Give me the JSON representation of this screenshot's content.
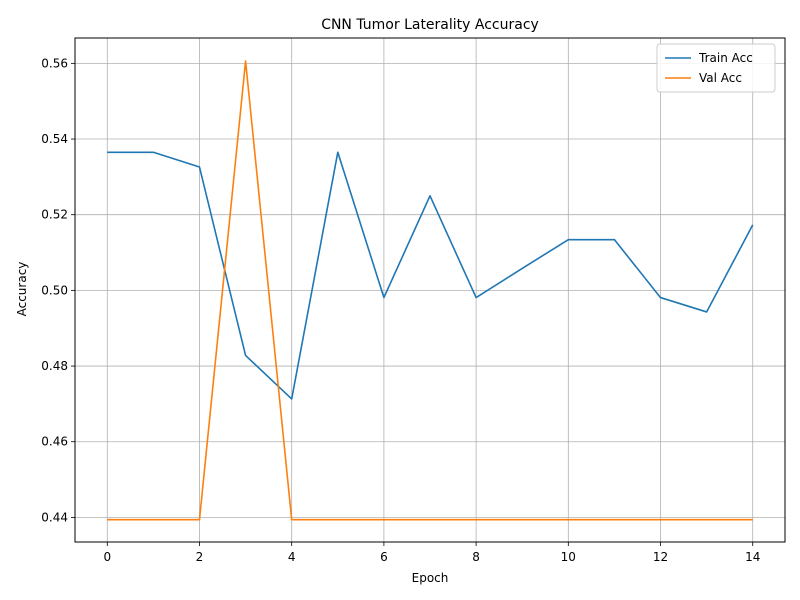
{
  "chart_data": {
    "type": "line",
    "title": "CNN Tumor Laterality Accuracy",
    "xlabel": "Epoch",
    "ylabel": "Accuracy",
    "x": [
      0,
      1,
      2,
      3,
      4,
      5,
      6,
      7,
      8,
      9,
      10,
      11,
      12,
      13,
      14
    ],
    "xlim": [
      -0.7,
      14.7
    ],
    "ylim": [
      0.4335,
      0.5667
    ],
    "xticks": [
      0,
      2,
      4,
      6,
      8,
      10,
      12,
      14
    ],
    "yticks": [
      0.44,
      0.46,
      0.48,
      0.5,
      0.52,
      0.54,
      0.56
    ],
    "ytick_labels": [
      "0.44",
      "0.46",
      "0.48",
      "0.50",
      "0.52",
      "0.54",
      "0.56"
    ],
    "grid": true,
    "legend_position": "top-right",
    "series": [
      {
        "name": "Train Acc",
        "color": "#1f77b4",
        "values": [
          0.5365,
          0.5365,
          0.5326,
          0.4828,
          0.4713,
          0.5365,
          0.4981,
          0.525,
          0.4981,
          0.5058,
          0.5134,
          0.5134,
          0.4981,
          0.4943,
          0.5173
        ]
      },
      {
        "name": "Val Acc",
        "color": "#ff7f0e",
        "values": [
          0.4394,
          0.4394,
          0.4394,
          0.5606,
          0.4394,
          0.4394,
          0.4394,
          0.4394,
          0.4394,
          0.4394,
          0.4394,
          0.4394,
          0.4394,
          0.4394,
          0.4394
        ]
      }
    ]
  }
}
